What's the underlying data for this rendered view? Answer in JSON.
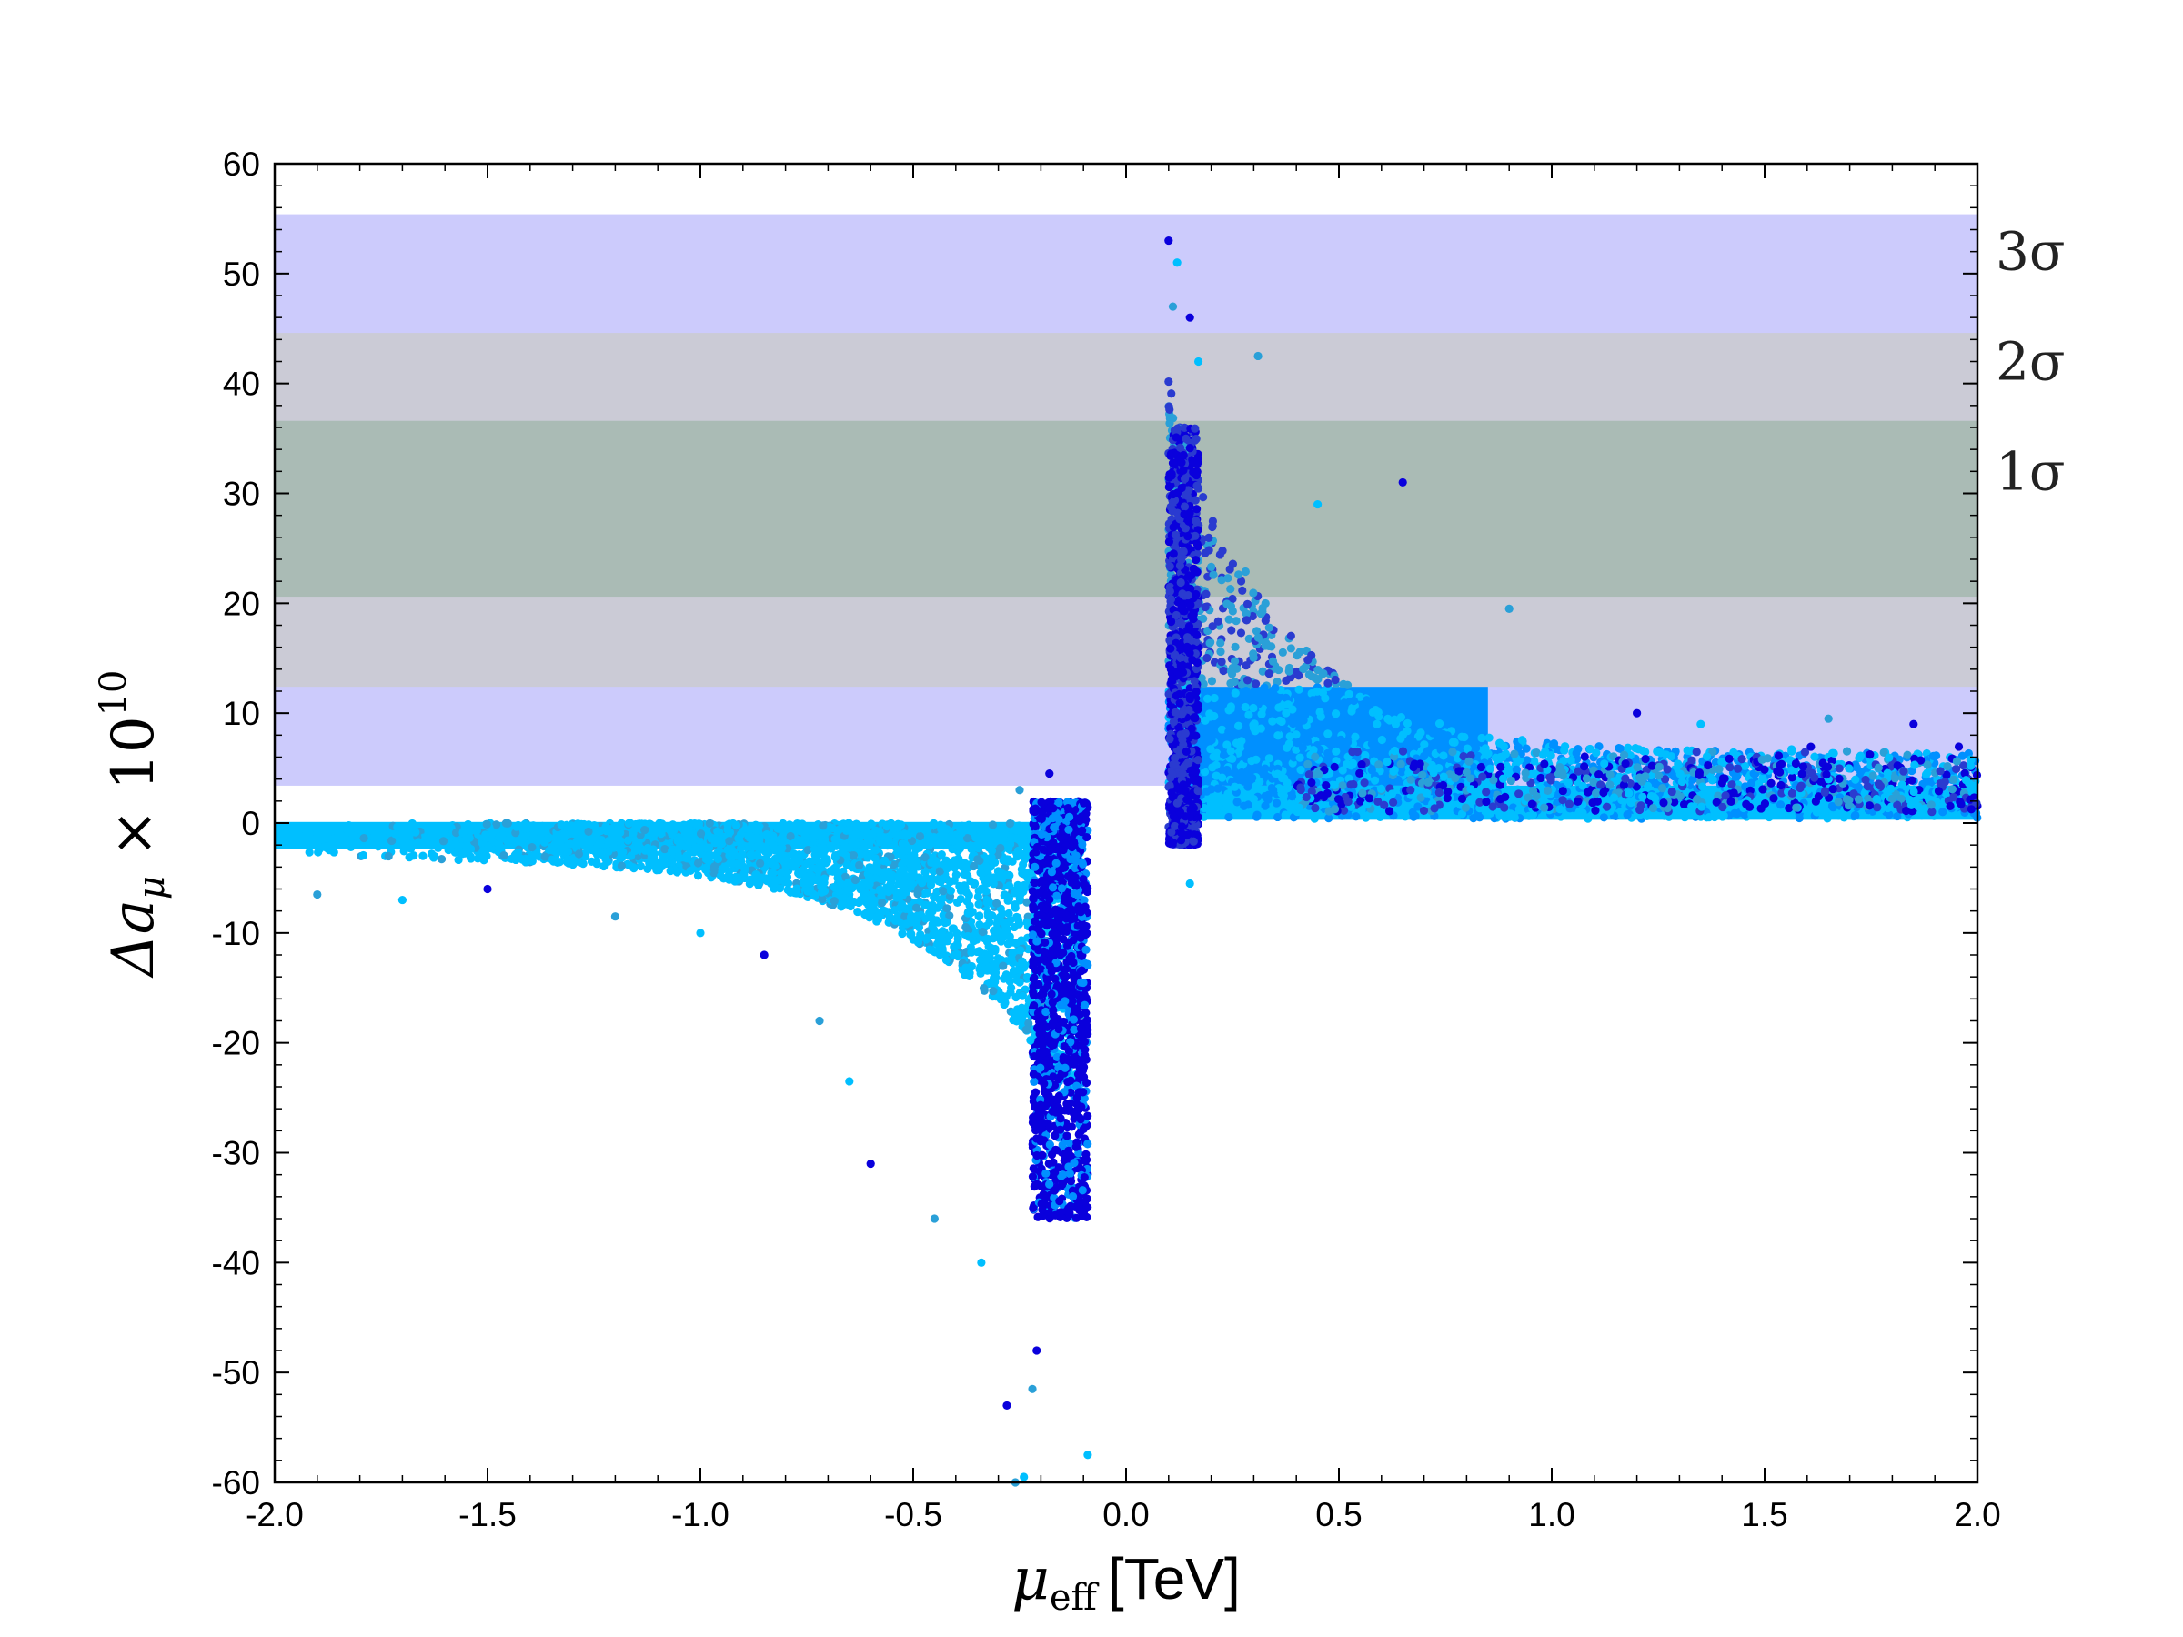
{
  "chart_data": {
    "type": "scatter",
    "title": "",
    "xlabel": "μeff [TeV]",
    "xlabel_parts": {
      "symbol": "μ",
      "subscript": "eff",
      "unit": "[TeV]"
    },
    "ylabel": "Δaμ × 10^10",
    "ylabel_parts": {
      "delta": "Δa",
      "subscript": "μ",
      "times": " × 10",
      "superscript": "10"
    },
    "xlim": [
      -2.0,
      2.0
    ],
    "ylim": [
      -60,
      60
    ],
    "x_ticks": [
      "-2.0",
      "-1.5",
      "-1.0",
      "-0.5",
      "0.0",
      "0.5",
      "1.0",
      "1.5",
      "2.0"
    ],
    "x_tick_values": [
      -2.0,
      -1.5,
      -1.0,
      -0.5,
      0.0,
      0.5,
      1.0,
      1.5,
      2.0
    ],
    "y_ticks": [
      "-60",
      "-50",
      "-40",
      "-30",
      "-20",
      "-10",
      "0",
      "10",
      "20",
      "30",
      "40",
      "50",
      "60"
    ],
    "y_tick_values": [
      -60,
      -50,
      -40,
      -30,
      -20,
      -10,
      0,
      10,
      20,
      30,
      40,
      50,
      60
    ],
    "grid": false,
    "bands": [
      {
        "label": "3σ",
        "range": [
          3.4,
          55.4
        ],
        "color": "#cccbfc",
        "label_y": 52
      },
      {
        "label": "2σ",
        "range": [
          12.4,
          44.6
        ],
        "color": "#cbcbd6",
        "label_y": 42
      },
      {
        "label": "1σ",
        "range": [
          20.6,
          36.6
        ],
        "color": "#aabbb5",
        "label_y": 32
      }
    ],
    "series_colors": [
      "#0a00dc",
      "#2a3bd0",
      "#2aa0d8",
      "#0090ff",
      "#00bfff"
    ],
    "point_clusters": [
      {
        "x_range": [
          -2.0,
          2.0
        ],
        "y_range": [
          0.5,
          3.4
        ],
        "color": "#00bfff",
        "note": "dense"
      },
      {
        "x_range": [
          0.1,
          0.85
        ],
        "y_range": [
          3.4,
          12.4
        ],
        "color": "#0090ff",
        "note": "dense"
      },
      {
        "x_range": [
          0.1,
          0.6
        ],
        "y_range": [
          12.4,
          22
        ],
        "color": "#2aa0d8",
        "note": "dense"
      },
      {
        "x_range": [
          0.1,
          0.16
        ],
        "y_range": [
          0,
          35
        ],
        "color": "#2a3bd0",
        "note": "dense"
      },
      {
        "x_range": [
          -2.0,
          -0.1
        ],
        "y_range": [
          -3,
          0
        ],
        "color": "#00bfff",
        "note": "dense"
      },
      {
        "x_range": [
          -0.9,
          -0.1
        ],
        "y_range": [
          -25,
          -3
        ],
        "color": "#00bfff",
        "note": "wedge"
      },
      {
        "x_range": [
          -0.2,
          -0.08
        ],
        "y_range": [
          -35,
          0
        ],
        "color": "#0a00dc",
        "note": "dense"
      }
    ],
    "sample_points": [
      [
        0.1,
        53.0
      ],
      [
        0.12,
        51.0
      ],
      [
        0.11,
        47.0
      ],
      [
        0.15,
        46.0
      ],
      [
        0.17,
        42.0
      ],
      [
        0.31,
        42.5
      ],
      [
        0.65,
        31.0
      ],
      [
        0.45,
        29.0
      ],
      [
        0.9,
        19.5
      ],
      [
        1.2,
        10.0
      ],
      [
        1.35,
        9.0
      ],
      [
        1.65,
        9.5
      ],
      [
        1.85,
        9.0
      ],
      [
        0.15,
        -5.5
      ],
      [
        -0.25,
        3.0
      ],
      [
        -0.18,
        4.5
      ],
      [
        -0.09,
        -57.5
      ],
      [
        -0.22,
        -51.5
      ],
      [
        -0.28,
        -53.0
      ],
      [
        -0.24,
        -59.5
      ],
      [
        -0.26,
        -60.0
      ],
      [
        -0.21,
        -48.0
      ],
      [
        -0.34,
        -40.0
      ],
      [
        -0.45,
        -36.0
      ],
      [
        -0.6,
        -31.0
      ],
      [
        -0.65,
        -23.5
      ],
      [
        -0.72,
        -18.0
      ],
      [
        -0.85,
        -12.0
      ],
      [
        -1.0,
        -10.0
      ],
      [
        -1.2,
        -8.5
      ],
      [
        -1.5,
        -6.0
      ],
      [
        -1.7,
        -7.0
      ],
      [
        -1.9,
        -6.5
      ]
    ]
  }
}
